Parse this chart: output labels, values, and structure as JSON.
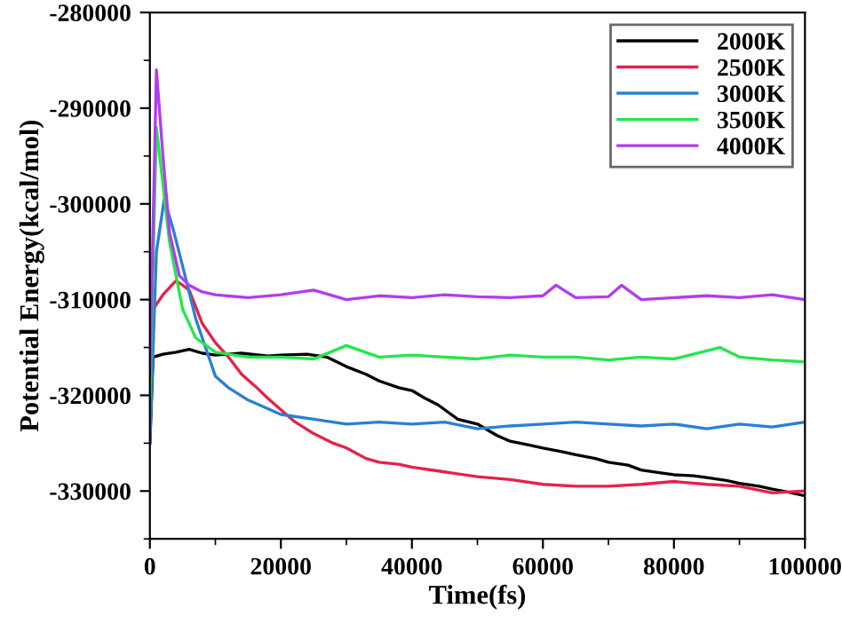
{
  "chart_data": {
    "type": "line",
    "xlabel": "Time(fs)",
    "ylabel": "Potential Energy(kcal/mol)",
    "xlim": [
      0,
      100000
    ],
    "ylim": [
      -335000,
      -280000
    ],
    "xticks": [
      0,
      20000,
      40000,
      60000,
      80000,
      100000
    ],
    "yticks": [
      -330000,
      -320000,
      -310000,
      -300000,
      -290000,
      -280000
    ],
    "legend": "top right",
    "grid": false,
    "marker": "none",
    "line_style": "solid",
    "series": [
      {
        "name": "2000K",
        "color": "#000000",
        "x": [
          0,
          500,
          2000,
          4000,
          6000,
          8000,
          10000,
          14000,
          18000,
          20000,
          24000,
          27000,
          30000,
          33000,
          35000,
          38000,
          40000,
          42000,
          44000,
          47000,
          50000,
          53000,
          55000,
          58000,
          60000,
          63000,
          65000,
          68000,
          70000,
          73000,
          75000,
          78000,
          80000,
          83000,
          85000,
          88000,
          90000,
          93000,
          95000,
          98000,
          100000
        ],
        "values": [
          -325000,
          -316000,
          -315700,
          -315500,
          -315200,
          -315600,
          -315800,
          -315600,
          -315900,
          -315800,
          -315700,
          -316000,
          -317000,
          -317800,
          -318500,
          -319200,
          -319500,
          -320300,
          -321000,
          -322500,
          -323000,
          -324200,
          -324800,
          -325200,
          -325500,
          -325900,
          -326200,
          -326600,
          -327000,
          -327300,
          -327800,
          -328100,
          -328300,
          -328400,
          -328600,
          -328900,
          -329200,
          -329500,
          -329800,
          -330200,
          -330500
        ]
      },
      {
        "name": "2500K",
        "color": "#e8204a",
        "x": [
          0,
          500,
          2000,
          4000,
          6000,
          8000,
          10000,
          12000,
          14000,
          16000,
          18000,
          20000,
          22000,
          25000,
          28000,
          30000,
          33000,
          35000,
          38000,
          40000,
          45000,
          50000,
          55000,
          60000,
          65000,
          70000,
          75000,
          80000,
          85000,
          90000,
          95000,
          100000
        ],
        "values": [
          -325000,
          -311000,
          -309500,
          -308000,
          -309000,
          -312500,
          -314500,
          -316000,
          -317800,
          -319000,
          -320300,
          -321500,
          -322700,
          -324000,
          -325000,
          -325500,
          -326600,
          -327000,
          -327200,
          -327500,
          -328000,
          -328500,
          -328800,
          -329300,
          -329500,
          -329500,
          -329300,
          -329000,
          -329300,
          -329500,
          -330200,
          -330000
        ]
      },
      {
        "name": "3000K",
        "color": "#2b7fd4",
        "x": [
          0,
          1000,
          2200,
          3500,
          5000,
          7000,
          9000,
          10000,
          12000,
          15000,
          18000,
          20000,
          25000,
          30000,
          35000,
          40000,
          45000,
          50000,
          55000,
          60000,
          65000,
          70000,
          75000,
          80000,
          85000,
          90000,
          95000,
          100000
        ],
        "values": [
          -325000,
          -305000,
          -299500,
          -302500,
          -306500,
          -312000,
          -316000,
          -318000,
          -319200,
          -320500,
          -321400,
          -322000,
          -322500,
          -323000,
          -322800,
          -323000,
          -322800,
          -323500,
          -323200,
          -323000,
          -322800,
          -323000,
          -323200,
          -323000,
          -323500,
          -323000,
          -323300,
          -322800
        ]
      },
      {
        "name": "3500K",
        "color": "#22e84a",
        "x": [
          0,
          1000,
          2000,
          3000,
          5000,
          7000,
          10000,
          15000,
          20000,
          25000,
          30000,
          35000,
          40000,
          45000,
          50000,
          55000,
          60000,
          65000,
          70000,
          75000,
          80000,
          87000,
          90000,
          95000,
          100000
        ],
        "values": [
          -320000,
          -292000,
          -298000,
          -304000,
          -311000,
          -314000,
          -315500,
          -316000,
          -316000,
          -316200,
          -314800,
          -316000,
          -315800,
          -316000,
          -316200,
          -315800,
          -316000,
          -316000,
          -316300,
          -316000,
          -316200,
          -315000,
          -316000,
          -316300,
          -316500
        ]
      },
      {
        "name": "4000K",
        "color": "#b23cf0",
        "x": [
          0,
          1000,
          2000,
          3000,
          4500,
          6000,
          8000,
          10000,
          15000,
          20000,
          25000,
          30000,
          35000,
          40000,
          45000,
          50000,
          55000,
          60000,
          62000,
          65000,
          70000,
          72000,
          75000,
          80000,
          85000,
          90000,
          95000,
          100000
        ],
        "values": [
          -318000,
          -286000,
          -295000,
          -303000,
          -307500,
          -308500,
          -309200,
          -309500,
          -309800,
          -309500,
          -309000,
          -310000,
          -309600,
          -309800,
          -309500,
          -309700,
          -309800,
          -309600,
          -308500,
          -309800,
          -309700,
          -308500,
          -310000,
          -309800,
          -309600,
          -309800,
          -309500,
          -310000
        ]
      }
    ]
  }
}
